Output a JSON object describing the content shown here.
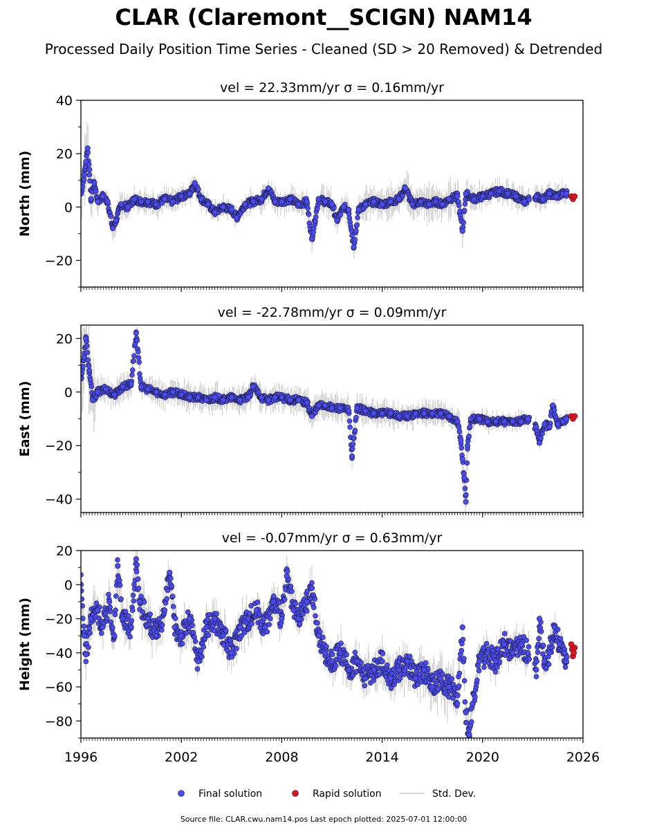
{
  "title": "CLAR (Claremont__SCIGN) NAM14",
  "subtitle": "Processed Daily Position Time Series - Cleaned (SD > 20 Removed) & Detrended",
  "footer": "Source file: CLAR.cwu.nam14.pos  Last epoch plotted: 2025-07-01 12:00:00",
  "legend": {
    "final": "Final solution",
    "rapid": "Rapid solution",
    "std": "Std. Dev."
  },
  "colors": {
    "final": "#4b4bf5",
    "rapid": "#e8101a",
    "std": "#b0b0b0",
    "edge": "#1a1a2e"
  },
  "chart_data": [
    {
      "type": "scatter",
      "title": "vel = 22.33mm/yr   σ = 0.16mm/yr",
      "ylabel": "North (mm)",
      "xlim": [
        1996,
        2026
      ],
      "ylim": [
        -30,
        40
      ],
      "yticks": [
        -20,
        0,
        20,
        40
      ],
      "x_ticks": [
        "1996",
        "2002",
        "2008",
        "2014",
        "2020",
        "2026"
      ],
      "series": [
        {
          "name": "Final solution",
          "points": [
            [
              1996.0,
              5
            ],
            [
              1996.2,
              12
            ],
            [
              1996.3,
              17
            ],
            [
              1996.4,
              22
            ],
            [
              1996.5,
              14
            ],
            [
              1996.6,
              3
            ],
            [
              1996.8,
              9
            ],
            [
              1997.0,
              2
            ],
            [
              1997.3,
              4
            ],
            [
              1997.6,
              2
            ],
            [
              1997.9,
              -8
            ],
            [
              1998.1,
              -5
            ],
            [
              1998.4,
              1
            ],
            [
              1998.8,
              0
            ],
            [
              1999.2,
              3
            ],
            [
              1999.6,
              2
            ],
            [
              2000.0,
              2
            ],
            [
              2000.5,
              1
            ],
            [
              2001.0,
              3
            ],
            [
              2001.5,
              2
            ],
            [
              2002.0,
              4
            ],
            [
              2002.5,
              5
            ],
            [
              2002.8,
              9
            ],
            [
              2003.2,
              3
            ],
            [
              2003.6,
              1
            ],
            [
              2004.0,
              -2
            ],
            [
              2004.5,
              0
            ],
            [
              2005.0,
              -1
            ],
            [
              2005.3,
              -4
            ],
            [
              2005.8,
              1
            ],
            [
              2006.3,
              2
            ],
            [
              2006.8,
              3
            ],
            [
              2007.2,
              7
            ],
            [
              2007.6,
              2
            ],
            [
              2008.0,
              2
            ],
            [
              2008.5,
              3
            ],
            [
              2009.0,
              1
            ],
            [
              2009.5,
              2
            ],
            [
              2009.8,
              -12
            ],
            [
              2010.2,
              3
            ],
            [
              2010.6,
              2
            ],
            [
              2011.0,
              1
            ],
            [
              2011.3,
              -5
            ],
            [
              2011.7,
              0
            ],
            [
              2012.0,
              -1
            ],
            [
              2012.3,
              -15
            ],
            [
              2012.6,
              -1
            ],
            [
              2013.0,
              1
            ],
            [
              2013.5,
              2
            ],
            [
              2014.0,
              1
            ],
            [
              2014.5,
              2
            ],
            [
              2015.0,
              3
            ],
            [
              2015.4,
              7
            ],
            [
              2015.8,
              1
            ],
            [
              2016.3,
              2
            ],
            [
              2016.8,
              1
            ],
            [
              2017.2,
              2
            ],
            [
              2017.6,
              1
            ],
            [
              2018.0,
              3
            ],
            [
              2018.5,
              4
            ],
            [
              2018.8,
              -9
            ],
            [
              2019.0,
              5
            ],
            [
              2019.5,
              3
            ],
            [
              2020.0,
              4
            ],
            [
              2020.5,
              5
            ],
            [
              2021.0,
              6
            ],
            [
              2021.5,
              5
            ],
            [
              2022.0,
              4
            ],
            [
              2022.5,
              2
            ],
            [
              2023.2,
              4
            ],
            [
              2023.6,
              3
            ],
            [
              2024.0,
              5
            ],
            [
              2024.4,
              4
            ],
            [
              2024.8,
              5
            ],
            [
              2025.0,
              5
            ]
          ]
        },
        {
          "name": "Rapid solution",
          "points": [
            [
              2025.3,
              4
            ],
            [
              2025.4,
              3
            ],
            [
              2025.5,
              4
            ]
          ]
        }
      ],
      "gaps": [
        [
          2022.8,
          2023.1
        ]
      ],
      "std_band": [
        [
          1996.0,
          12
        ],
        [
          1996.5,
          10
        ],
        [
          1997.0,
          4
        ],
        [
          2004.0,
          3
        ],
        [
          2018.8,
          6
        ],
        [
          2019.2,
          4
        ],
        [
          2025.5,
          3
        ]
      ]
    },
    {
      "type": "scatter",
      "title": "vel = -22.78mm/yr   σ = 0.09mm/yr",
      "ylabel": "East (mm)",
      "xlim": [
        1996,
        2026
      ],
      "ylim": [
        -45,
        25
      ],
      "yticks": [
        -40,
        -20,
        0,
        20
      ],
      "x_ticks": [
        "1996",
        "2002",
        "2008",
        "2014",
        "2020",
        "2026"
      ],
      "series": [
        {
          "name": "Final solution",
          "points": [
            [
              1996.0,
              5
            ],
            [
              1996.2,
              13
            ],
            [
              1996.3,
              20
            ],
            [
              1996.5,
              8
            ],
            [
              1996.7,
              -3
            ],
            [
              1997.0,
              0
            ],
            [
              1997.5,
              1
            ],
            [
              1998.0,
              -1
            ],
            [
              1998.5,
              2
            ],
            [
              1999.0,
              3
            ],
            [
              1999.3,
              22
            ],
            [
              1999.6,
              2
            ],
            [
              2000.0,
              1
            ],
            [
              2000.5,
              0
            ],
            [
              2001.0,
              -1
            ],
            [
              2001.5,
              0
            ],
            [
              2002.0,
              -1
            ],
            [
              2002.5,
              -2
            ],
            [
              2003.0,
              -2
            ],
            [
              2003.5,
              -3
            ],
            [
              2004.0,
              -2
            ],
            [
              2004.5,
              -3
            ],
            [
              2005.0,
              -2
            ],
            [
              2005.5,
              -3
            ],
            [
              2006.0,
              -2
            ],
            [
              2006.3,
              2
            ],
            [
              2006.8,
              -2
            ],
            [
              2007.2,
              -3
            ],
            [
              2007.6,
              -2
            ],
            [
              2008.0,
              -2
            ],
            [
              2008.5,
              -3
            ],
            [
              2009.0,
              -3
            ],
            [
              2009.5,
              -4
            ],
            [
              2009.8,
              -9
            ],
            [
              2010.2,
              -5
            ],
            [
              2010.6,
              -5
            ],
            [
              2011.0,
              -6
            ],
            [
              2011.5,
              -6
            ],
            [
              2012.0,
              -7
            ],
            [
              2012.2,
              -24
            ],
            [
              2012.5,
              -6
            ],
            [
              2013.0,
              -7
            ],
            [
              2013.5,
              -8
            ],
            [
              2014.0,
              -8
            ],
            [
              2014.5,
              -8
            ],
            [
              2015.0,
              -9
            ],
            [
              2015.5,
              -9
            ],
            [
              2016.0,
              -8
            ],
            [
              2016.5,
              -8
            ],
            [
              2017.0,
              -8
            ],
            [
              2017.5,
              -8
            ],
            [
              2018.0,
              -9
            ],
            [
              2018.5,
              -11
            ],
            [
              2018.7,
              -18
            ],
            [
              2018.8,
              -25
            ],
            [
              2018.9,
              -32
            ],
            [
              2019.0,
              -41
            ],
            [
              2019.1,
              -20
            ],
            [
              2019.3,
              -10
            ],
            [
              2019.8,
              -10
            ],
            [
              2020.3,
              -11
            ],
            [
              2020.8,
              -11
            ],
            [
              2021.3,
              -11
            ],
            [
              2021.8,
              -11
            ],
            [
              2022.3,
              -11
            ],
            [
              2022.7,
              -10
            ],
            [
              2023.2,
              -13
            ],
            [
              2023.4,
              -19
            ],
            [
              2023.7,
              -12
            ],
            [
              2024.0,
              -13
            ],
            [
              2024.2,
              -5
            ],
            [
              2024.5,
              -12
            ],
            [
              2024.8,
              -11
            ],
            [
              2025.0,
              -10
            ]
          ]
        },
        {
          "name": "Rapid solution",
          "points": [
            [
              2025.3,
              -9
            ],
            [
              2025.4,
              -10
            ],
            [
              2025.5,
              -9
            ]
          ]
        }
      ],
      "gaps": [
        [
          2022.8,
          2023.1
        ]
      ],
      "std_band": [
        [
          1996.0,
          15
        ],
        [
          1996.7,
          12
        ],
        [
          1997.0,
          4
        ],
        [
          2018.5,
          4
        ],
        [
          2019.0,
          10
        ],
        [
          2019.3,
          3
        ],
        [
          2025.5,
          2
        ]
      ]
    },
    {
      "type": "scatter",
      "title": "vel = -0.07mm/yr   σ = 0.63mm/yr",
      "ylabel": "Height (mm)",
      "xlim": [
        1996,
        2026
      ],
      "ylim": [
        -90,
        20
      ],
      "yticks": [
        -80,
        -60,
        -40,
        -20,
        0,
        20
      ],
      "x_ticks": [
        "1996",
        "2002",
        "2008",
        "2014",
        "2020",
        "2026"
      ],
      "series": [
        {
          "name": "Final solution",
          "points": [
            [
              1996.0,
              0
            ],
            [
              1996.2,
              -30
            ],
            [
              1996.3,
              -41
            ],
            [
              1996.6,
              -20
            ],
            [
              1997.0,
              -15
            ],
            [
              1997.3,
              -25
            ],
            [
              1997.7,
              -10
            ],
            [
              1998.0,
              -30
            ],
            [
              1998.2,
              11
            ],
            [
              1998.5,
              -20
            ],
            [
              1999.0,
              -25
            ],
            [
              1999.3,
              15
            ],
            [
              1999.5,
              -10
            ],
            [
              2000.0,
              -20
            ],
            [
              2000.5,
              -30
            ],
            [
              2001.0,
              -15
            ],
            [
              2001.3,
              7
            ],
            [
              2001.6,
              -25
            ],
            [
              2002.0,
              -30
            ],
            [
              2002.5,
              -20
            ],
            [
              2003.0,
              -45
            ],
            [
              2003.5,
              -25
            ],
            [
              2004.0,
              -20
            ],
            [
              2004.5,
              -30
            ],
            [
              2005.0,
              -40
            ],
            [
              2005.5,
              -25
            ],
            [
              2006.0,
              -20
            ],
            [
              2006.5,
              -15
            ],
            [
              2007.0,
              -25
            ],
            [
              2007.5,
              -10
            ],
            [
              2008.0,
              -20
            ],
            [
              2008.3,
              5
            ],
            [
              2008.7,
              -15
            ],
            [
              2009.0,
              -20
            ],
            [
              2009.5,
              -10
            ],
            [
              2009.8,
              -2
            ],
            [
              2010.2,
              -30
            ],
            [
              2010.6,
              -40
            ],
            [
              2011.0,
              -45
            ],
            [
              2011.5,
              -40
            ],
            [
              2012.0,
              -50
            ],
            [
              2012.5,
              -45
            ],
            [
              2013.0,
              -55
            ],
            [
              2013.5,
              -50
            ],
            [
              2014.0,
              -45
            ],
            [
              2014.5,
              -55
            ],
            [
              2015.0,
              -50
            ],
            [
              2015.5,
              -45
            ],
            [
              2016.0,
              -55
            ],
            [
              2016.5,
              -50
            ],
            [
              2017.0,
              -60
            ],
            [
              2017.5,
              -55
            ],
            [
              2018.0,
              -60
            ],
            [
              2018.5,
              -65
            ],
            [
              2018.8,
              -25
            ],
            [
              2019.0,
              -75
            ],
            [
              2019.2,
              -88
            ],
            [
              2019.4,
              -70
            ],
            [
              2019.8,
              -45
            ],
            [
              2020.3,
              -40
            ],
            [
              2020.8,
              -45
            ],
            [
              2021.3,
              -35
            ],
            [
              2021.8,
              -40
            ],
            [
              2022.3,
              -35
            ],
            [
              2022.7,
              -40
            ],
            [
              2023.2,
              -50
            ],
            [
              2023.4,
              -20
            ],
            [
              2023.7,
              -45
            ],
            [
              2024.0,
              -40
            ],
            [
              2024.3,
              -25
            ],
            [
              2024.6,
              -35
            ],
            [
              2024.9,
              -40
            ],
            [
              2025.0,
              -45
            ]
          ]
        },
        {
          "name": "Rapid solution",
          "points": [
            [
              2025.3,
              -35
            ],
            [
              2025.35,
              -38
            ],
            [
              2025.4,
              -42
            ],
            [
              2025.45,
              -40
            ],
            [
              2025.5,
              -37
            ]
          ]
        }
      ],
      "gaps": [
        [
          2022.8,
          2023.1
        ]
      ],
      "std_band": [
        [
          1996.0,
          10
        ],
        [
          2010.0,
          8
        ],
        [
          2018.5,
          12
        ],
        [
          2019.2,
          8
        ],
        [
          2025.5,
          6
        ]
      ]
    }
  ]
}
